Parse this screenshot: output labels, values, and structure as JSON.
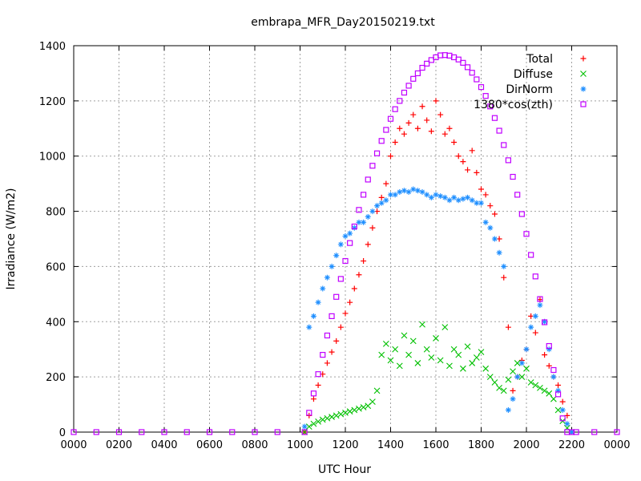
{
  "chart_data": {
    "type": "scatter",
    "title": "embrapa_MFR_Day20150219.txt",
    "xlabel": "UTC Hour",
    "ylabel": "Irradiance (W/m2)",
    "xlim": [
      0,
      24
    ],
    "ylim": [
      0,
      1400
    ],
    "x_ticks": [
      0,
      2,
      4,
      6,
      8,
      10,
      12,
      14,
      16,
      18,
      20,
      22,
      24
    ],
    "x_tick_labels": [
      "0000",
      "0200",
      "0400",
      "0600",
      "0800",
      "1000",
      "1200",
      "1400",
      "1600",
      "1800",
      "2000",
      "2200",
      "0000"
    ],
    "y_ticks": [
      0,
      200,
      400,
      600,
      800,
      1000,
      1200,
      1400
    ],
    "y_tick_labels": [
      "0",
      "200",
      "400",
      "600",
      "800",
      "1000",
      "1200",
      "1400"
    ],
    "grid": true,
    "legend_position": "top-right",
    "series": [
      {
        "name": "Total",
        "marker": "plus",
        "color": "#ff0000",
        "x": [
          10.2,
          10.4,
          10.6,
          10.8,
          11.0,
          11.2,
          11.4,
          11.6,
          11.8,
          12.0,
          12.2,
          12.4,
          12.6,
          12.8,
          13.0,
          13.2,
          13.4,
          13.6,
          13.8,
          14.0,
          14.2,
          14.4,
          14.6,
          14.8,
          15.0,
          15.2,
          15.4,
          15.6,
          15.8,
          16.0,
          16.2,
          16.4,
          16.6,
          16.8,
          17.0,
          17.2,
          17.4,
          17.6,
          17.8,
          18.0,
          18.2,
          18.4,
          18.6,
          18.8,
          19.0,
          19.2,
          19.4,
          19.6,
          19.8,
          20.0,
          20.2,
          20.4,
          20.6,
          20.8,
          21.0,
          21.2,
          21.4,
          21.6,
          21.8,
          22.0
        ],
        "y": [
          0,
          60,
          120,
          170,
          210,
          250,
          290,
          330,
          380,
          430,
          470,
          520,
          570,
          620,
          680,
          740,
          800,
          850,
          900,
          1000,
          1050,
          1100,
          1080,
          1120,
          1150,
          1100,
          1180,
          1130,
          1090,
          1200,
          1150,
          1080,
          1100,
          1050,
          1000,
          980,
          950,
          1020,
          940,
          880,
          860,
          820,
          790,
          700,
          560,
          380,
          150,
          200,
          260,
          300,
          420,
          360,
          480,
          280,
          240,
          200,
          170,
          110,
          60,
          0
        ]
      },
      {
        "name": "Diffuse",
        "marker": "cross",
        "color": "#00c000",
        "x": [
          10.2,
          10.4,
          10.6,
          10.8,
          11.0,
          11.2,
          11.4,
          11.6,
          11.8,
          12.0,
          12.2,
          12.4,
          12.6,
          12.8,
          13.0,
          13.2,
          13.4,
          13.6,
          13.8,
          14.0,
          14.2,
          14.4,
          14.6,
          14.8,
          15.0,
          15.2,
          15.4,
          15.6,
          15.8,
          16.0,
          16.2,
          16.4,
          16.6,
          16.8,
          17.0,
          17.2,
          17.4,
          17.6,
          17.8,
          18.0,
          18.2,
          18.4,
          18.6,
          18.8,
          19.0,
          19.2,
          19.4,
          19.6,
          19.8,
          20.0,
          20.2,
          20.4,
          20.6,
          20.8,
          21.0,
          21.2,
          21.4,
          21.6,
          21.8,
          22.0
        ],
        "y": [
          0,
          20,
          30,
          38,
          45,
          50,
          55,
          60,
          65,
          70,
          75,
          80,
          85,
          90,
          95,
          110,
          150,
          280,
          320,
          260,
          300,
          240,
          350,
          280,
          330,
          250,
          390,
          300,
          270,
          340,
          260,
          380,
          240,
          300,
          280,
          230,
          310,
          250,
          270,
          290,
          230,
          200,
          180,
          160,
          150,
          190,
          220,
          250,
          200,
          230,
          180,
          170,
          160,
          150,
          140,
          120,
          80,
          40,
          15,
          0
        ]
      },
      {
        "name": "DirNorm",
        "marker": "star",
        "color": "#1f8fff",
        "x": [
          10.2,
          10.4,
          10.6,
          10.8,
          11.0,
          11.2,
          11.4,
          11.6,
          11.8,
          12.0,
          12.2,
          12.4,
          12.6,
          12.8,
          13.0,
          13.2,
          13.4,
          13.6,
          13.8,
          14.0,
          14.2,
          14.4,
          14.6,
          14.8,
          15.0,
          15.2,
          15.4,
          15.6,
          15.8,
          16.0,
          16.2,
          16.4,
          16.6,
          16.8,
          17.0,
          17.2,
          17.4,
          17.6,
          17.8,
          18.0,
          18.2,
          18.4,
          18.6,
          18.8,
          19.0,
          19.2,
          19.4,
          19.6,
          19.8,
          20.0,
          20.2,
          20.4,
          20.6,
          20.8,
          21.0,
          21.2,
          21.4,
          21.6,
          21.8,
          22.0
        ],
        "y": [
          20,
          380,
          420,
          470,
          520,
          560,
          600,
          640,
          680,
          710,
          720,
          740,
          760,
          760,
          780,
          800,
          820,
          830,
          840,
          860,
          860,
          870,
          875,
          870,
          880,
          875,
          870,
          860,
          850,
          860,
          855,
          850,
          840,
          850,
          840,
          845,
          850,
          840,
          830,
          830,
          760,
          740,
          700,
          650,
          600,
          80,
          120,
          200,
          250,
          300,
          380,
          420,
          460,
          400,
          300,
          200,
          150,
          80,
          30,
          0
        ]
      },
      {
        "name": "1380*cos(zth)",
        "marker": "square",
        "color": "#c000ff",
        "x": [
          0,
          1,
          2,
          3,
          4,
          5,
          6,
          7,
          8,
          9,
          10.2,
          10.4,
          10.6,
          10.8,
          11.0,
          11.2,
          11.4,
          11.6,
          11.8,
          12.0,
          12.2,
          12.4,
          12.6,
          12.8,
          13.0,
          13.2,
          13.4,
          13.6,
          13.8,
          14.0,
          14.2,
          14.4,
          14.6,
          14.8,
          15.0,
          15.2,
          15.4,
          15.6,
          15.8,
          16.0,
          16.2,
          16.4,
          16.6,
          16.8,
          17.0,
          17.2,
          17.4,
          17.6,
          17.8,
          18.0,
          18.2,
          18.4,
          18.6,
          18.8,
          19.0,
          19.2,
          19.4,
          19.6,
          19.8,
          20.0,
          20.2,
          20.4,
          20.6,
          20.8,
          21.0,
          21.2,
          21.4,
          21.6,
          21.8,
          22.0,
          22.2,
          23,
          24
        ],
        "y": [
          0,
          0,
          0,
          0,
          0,
          0,
          0,
          0,
          0,
          0,
          0,
          70,
          140,
          210,
          280,
          350,
          420,
          490,
          555,
          620,
          685,
          745,
          805,
          860,
          915,
          965,
          1010,
          1055,
          1095,
          1135,
          1170,
          1200,
          1230,
          1255,
          1280,
          1300,
          1320,
          1335,
          1348,
          1358,
          1365,
          1366,
          1364,
          1358,
          1350,
          1338,
          1322,
          1302,
          1278,
          1250,
          1218,
          1180,
          1138,
          1092,
          1040,
          985,
          925,
          860,
          790,
          718,
          642,
          564,
          482,
          398,
          312,
          225,
          137,
          50,
          0,
          0,
          0,
          0,
          0
        ]
      }
    ]
  }
}
